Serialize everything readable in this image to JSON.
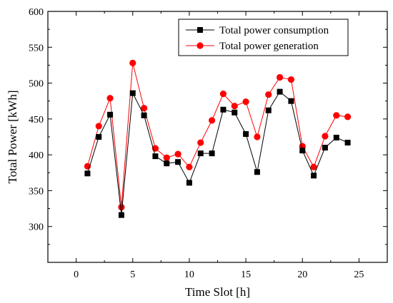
{
  "chart_data": {
    "type": "line",
    "title": "",
    "xlabel": "Time Slot [h]",
    "ylabel": "Total Power [kWh]",
    "xlim": [
      -2.5,
      27.5
    ],
    "ylim": [
      250,
      600
    ],
    "xticks": [
      0,
      5,
      10,
      15,
      20,
      25
    ],
    "yticks": [
      300,
      350,
      400,
      450,
      500,
      550,
      600
    ],
    "grid": false,
    "legend_position": "top-right",
    "x": [
      1,
      2,
      3,
      4,
      5,
      6,
      7,
      8,
      9,
      10,
      11,
      12,
      13,
      14,
      15,
      16,
      17,
      18,
      19,
      20,
      21,
      22,
      23,
      24
    ],
    "series": [
      {
        "name": "Total power consumption",
        "color": "#000000",
        "marker": "square",
        "values": [
          374,
          425,
          456,
          316,
          486,
          455,
          398,
          388,
          390,
          361,
          402,
          402,
          463,
          459,
          429,
          376,
          462,
          488,
          475,
          406,
          371,
          410,
          424,
          417
        ]
      },
      {
        "name": "Total power generation",
        "color": "#ff0000",
        "marker": "circle",
        "values": [
          384,
          440,
          479,
          327,
          528,
          465,
          409,
          396,
          401,
          383,
          417,
          448,
          485,
          468,
          474,
          425,
          484,
          508,
          505,
          412,
          383,
          426,
          455,
          453
        ]
      }
    ]
  }
}
